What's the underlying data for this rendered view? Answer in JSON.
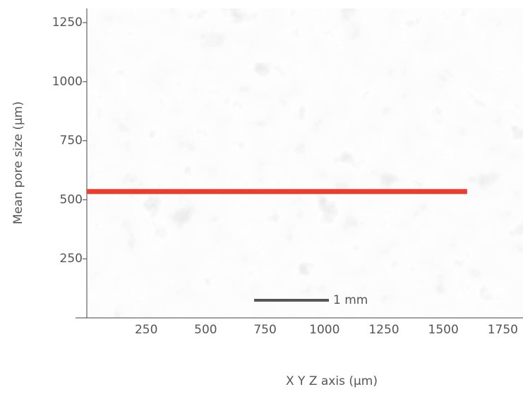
{
  "chart_data": {
    "type": "line",
    "xlabel": "X  Y  Z  axis  (µm)",
    "ylabel": "Mean pore size  (µm)",
    "x": [
      0,
      1600
    ],
    "values": [
      535,
      535
    ],
    "color": "#ee3a2f",
    "xlim": [
      0,
      1835
    ],
    "ylim": [
      0,
      1310
    ],
    "xticks": [
      250,
      500,
      750,
      1000,
      1250,
      1500,
      1750
    ],
    "yticks": [
      250,
      500,
      750,
      1000,
      1250
    ],
    "annotation": "1 mm"
  }
}
